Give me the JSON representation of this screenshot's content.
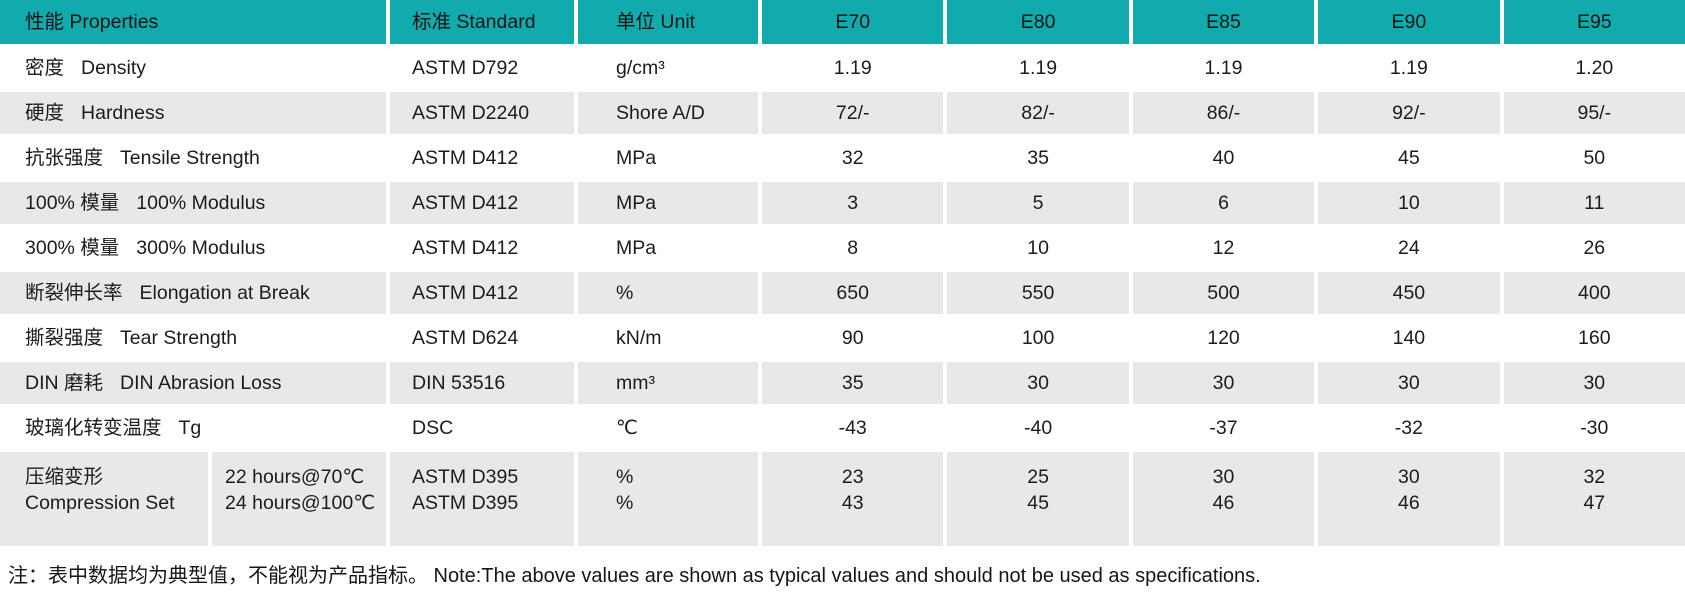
{
  "colors": {
    "accent": "#12abad",
    "row_alt": "#e8e8e8",
    "text": "#1c1c1c"
  },
  "table": {
    "header": {
      "properties": "性能 Properties",
      "standard": "标准 Standard",
      "unit": "单位 Unit",
      "grades": [
        "E70",
        "E80",
        "E85",
        "E90",
        "E95"
      ]
    },
    "rows": [
      {
        "zh": "密度",
        "en": "Density",
        "standard": "ASTM D792",
        "unit": "g/cm³",
        "values": [
          "1.19",
          "1.19",
          "1.19",
          "1.19",
          "1.20"
        ]
      },
      {
        "zh": "硬度",
        "en": "Hardness",
        "standard": "ASTM D2240",
        "unit": "Shore A/D",
        "values": [
          "72/-",
          "82/-",
          "86/-",
          "92/-",
          "95/-"
        ]
      },
      {
        "zh": "抗张强度",
        "en": "Tensile Strength",
        "standard": "ASTM D412",
        "unit": "MPa",
        "values": [
          "32",
          "35",
          "40",
          "45",
          "50"
        ]
      },
      {
        "zh": "100% 模量",
        "en": "100% Modulus",
        "standard": "ASTM D412",
        "unit": "MPa",
        "values": [
          "3",
          "5",
          "6",
          "10",
          "11"
        ]
      },
      {
        "zh": "300% 模量",
        "en": "300% Modulus",
        "standard": "ASTM D412",
        "unit": "MPa",
        "values": [
          "8",
          "10",
          "12",
          "24",
          "26"
        ]
      },
      {
        "zh": "断裂伸长率",
        "en": "Elongation at Break",
        "standard": "ASTM D412",
        "unit": "%",
        "values": [
          "650",
          "550",
          "500",
          "450",
          "400"
        ]
      },
      {
        "zh": "撕裂强度",
        "en": "Tear Strength",
        "standard": "ASTM D624",
        "unit": "kN/m",
        "values": [
          "90",
          "100",
          "120",
          "140",
          "160"
        ]
      },
      {
        "zh": "DIN 磨耗",
        "en": "DIN Abrasion Loss",
        "standard": "DIN 53516",
        "unit": "mm³",
        "values": [
          "35",
          "30",
          "30",
          "30",
          "30"
        ]
      },
      {
        "zh": "玻璃化转变温度",
        "en": "Tg",
        "standard": "DSC",
        "unit": "℃",
        "values": [
          "-43",
          "-40",
          "-37",
          "-32",
          "-30"
        ]
      }
    ],
    "compression": {
      "zh": "压缩变形",
      "en": "Compression Set",
      "conditions": {
        "a": "22 hours@70℃",
        "b": "24 hours@100℃"
      },
      "standard": {
        "a": "ASTM D395",
        "b": "ASTM D395"
      },
      "unit": {
        "a": "%",
        "b": "%"
      },
      "values": [
        {
          "a": "23",
          "b": "43"
        },
        {
          "a": "25",
          "b": "45"
        },
        {
          "a": "30",
          "b": "46"
        },
        {
          "a": "30",
          "b": "46"
        },
        {
          "a": "32",
          "b": "47"
        }
      ]
    },
    "note": "注：表中数据均为典型值，不能视为产品指标。 Note:The above values are shown as typical values and should not be used as specifications."
  }
}
